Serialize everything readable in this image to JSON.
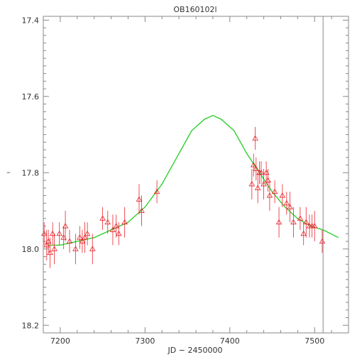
{
  "chart_data": {
    "type": "scatter",
    "title": "OB160102l",
    "xlabel": "JD − 2450000",
    "ylabel": "–",
    "xlim": [
      7180,
      7540
    ],
    "ylim": [
      18.22,
      17.39
    ],
    "y_inverted": true,
    "x_ticks": [
      7200,
      7300,
      7400,
      7500
    ],
    "y_ticks": [
      17.4,
      17.6,
      17.8,
      18.0,
      18.2
    ],
    "grid": false,
    "vertical_line_x": 7510,
    "colors": {
      "points": "#e8242c",
      "model": "#22cc22",
      "frame": "#888888"
    },
    "series": [
      {
        "kind": "observations",
        "marker": "triangle",
        "points": [
          {
            "x": 7181,
            "y": 17.96,
            "err": 0.03
          },
          {
            "x": 7184,
            "y": 17.99,
            "err": 0.04
          },
          {
            "x": 7186,
            "y": 17.98,
            "err": 0.03
          },
          {
            "x": 7188,
            "y": 18.01,
            "err": 0.04
          },
          {
            "x": 7191,
            "y": 17.96,
            "err": 0.03
          },
          {
            "x": 7193,
            "y": 18.0,
            "err": 0.04
          },
          {
            "x": 7199,
            "y": 17.96,
            "err": 0.03
          },
          {
            "x": 7204,
            "y": 17.97,
            "err": 0.03
          },
          {
            "x": 7206,
            "y": 17.94,
            "err": 0.04
          },
          {
            "x": 7211,
            "y": 17.98,
            "err": 0.03
          },
          {
            "x": 7218,
            "y": 18.0,
            "err": 0.04
          },
          {
            "x": 7223,
            "y": 17.97,
            "err": 0.03
          },
          {
            "x": 7226,
            "y": 17.98,
            "err": 0.03
          },
          {
            "x": 7229,
            "y": 17.97,
            "err": 0.04
          },
          {
            "x": 7232,
            "y": 17.96,
            "err": 0.03
          },
          {
            "x": 7238,
            "y": 18.0,
            "err": 0.04
          },
          {
            "x": 7250,
            "y": 17.92,
            "err": 0.03
          },
          {
            "x": 7256,
            "y": 17.93,
            "err": 0.03
          },
          {
            "x": 7262,
            "y": 17.95,
            "err": 0.04
          },
          {
            "x": 7266,
            "y": 17.94,
            "err": 0.03
          },
          {
            "x": 7269,
            "y": 17.96,
            "err": 0.03
          },
          {
            "x": 7276,
            "y": 17.93,
            "err": 0.04
          },
          {
            "x": 7293,
            "y": 17.87,
            "err": 0.04
          },
          {
            "x": 7296,
            "y": 17.9,
            "err": 0.04
          },
          {
            "x": 7314,
            "y": 17.85,
            "err": 0.03
          },
          {
            "x": 7426,
            "y": 17.83,
            "err": 0.04
          },
          {
            "x": 7428,
            "y": 17.78,
            "err": 0.03
          },
          {
            "x": 7430,
            "y": 17.71,
            "err": 0.03
          },
          {
            "x": 7431,
            "y": 17.79,
            "err": 0.03
          },
          {
            "x": 7433,
            "y": 17.84,
            "err": 0.04
          },
          {
            "x": 7435,
            "y": 17.8,
            "err": 0.03
          },
          {
            "x": 7437,
            "y": 17.8,
            "err": 0.03
          },
          {
            "x": 7440,
            "y": 17.83,
            "err": 0.04
          },
          {
            "x": 7443,
            "y": 17.8,
            "err": 0.03
          },
          {
            "x": 7445,
            "y": 17.82,
            "err": 0.03
          },
          {
            "x": 7447,
            "y": 17.86,
            "err": 0.04
          },
          {
            "x": 7453,
            "y": 17.85,
            "err": 0.03
          },
          {
            "x": 7458,
            "y": 17.93,
            "err": 0.04
          },
          {
            "x": 7462,
            "y": 17.86,
            "err": 0.03
          },
          {
            "x": 7467,
            "y": 17.88,
            "err": 0.03
          },
          {
            "x": 7471,
            "y": 17.89,
            "err": 0.04
          },
          {
            "x": 7475,
            "y": 17.93,
            "err": 0.04
          },
          {
            "x": 7483,
            "y": 17.92,
            "err": 0.03
          },
          {
            "x": 7487,
            "y": 17.96,
            "err": 0.03
          },
          {
            "x": 7490,
            "y": 17.93,
            "err": 0.04
          },
          {
            "x": 7494,
            "y": 17.94,
            "err": 0.03
          },
          {
            "x": 7497,
            "y": 17.94,
            "err": 0.03
          },
          {
            "x": 7500,
            "y": 17.94,
            "err": 0.04
          },
          {
            "x": 7509,
            "y": 17.98,
            "err": 0.03
          }
        ]
      },
      {
        "kind": "model",
        "line": "smooth",
        "points": [
          {
            "x": 7185,
            "y": 17.99
          },
          {
            "x": 7200,
            "y": 17.99
          },
          {
            "x": 7220,
            "y": 17.98
          },
          {
            "x": 7240,
            "y": 17.97
          },
          {
            "x": 7260,
            "y": 17.95
          },
          {
            "x": 7280,
            "y": 17.93
          },
          {
            "x": 7300,
            "y": 17.89
          },
          {
            "x": 7320,
            "y": 17.83
          },
          {
            "x": 7340,
            "y": 17.75
          },
          {
            "x": 7355,
            "y": 17.69
          },
          {
            "x": 7370,
            "y": 17.66
          },
          {
            "x": 7380,
            "y": 17.65
          },
          {
            "x": 7390,
            "y": 17.66
          },
          {
            "x": 7405,
            "y": 17.69
          },
          {
            "x": 7420,
            "y": 17.75
          },
          {
            "x": 7435,
            "y": 17.8
          },
          {
            "x": 7450,
            "y": 17.85
          },
          {
            "x": 7465,
            "y": 17.89
          },
          {
            "x": 7480,
            "y": 17.92
          },
          {
            "x": 7495,
            "y": 17.94
          },
          {
            "x": 7510,
            "y": 17.95
          },
          {
            "x": 7528,
            "y": 17.97
          }
        ]
      }
    ]
  }
}
